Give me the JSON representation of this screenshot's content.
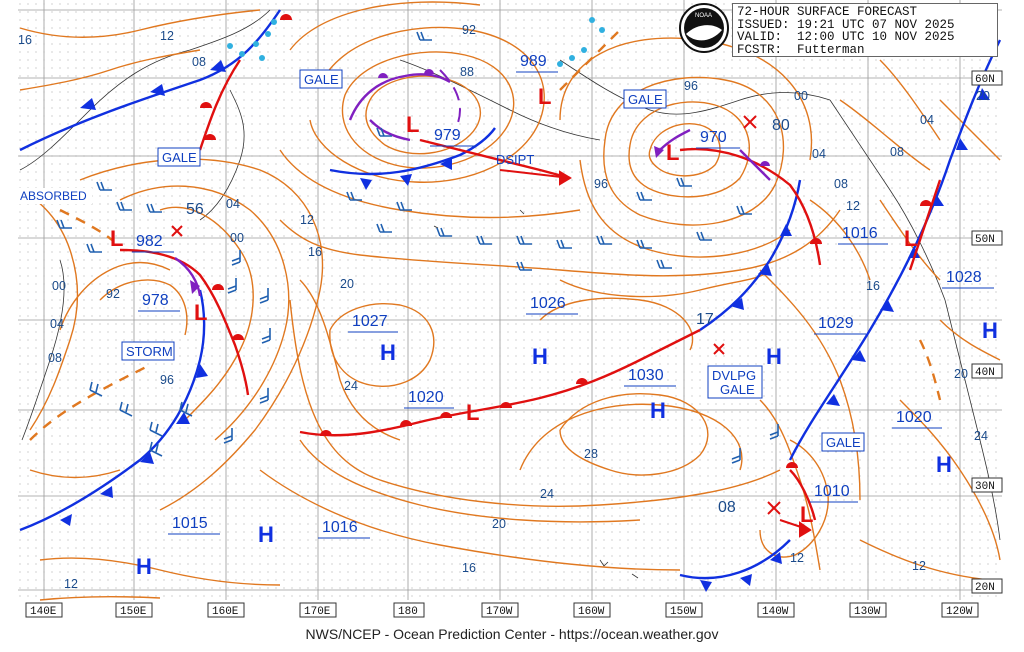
{
  "header": {
    "line1": "72-HOUR SURFACE FORECAST",
    "line2": "ISSUED: 19:21 UTC 07 NOV 2025",
    "line3": "VALID:  12:00 UTC 10 NOV 2025",
    "line4": "FCSTR:  Futterman"
  },
  "footer": "NWS/NCEP - Ocean Prediction Center - https://ocean.weather.gov",
  "logo_text": "NOAA",
  "colors": {
    "isobar": "#e07820",
    "cold_front": "#1030e0",
    "warm_front": "#e01010",
    "occluded": "#8020c0",
    "wind_barb": "#2060b0",
    "label_blue": "#1040c0",
    "graticule": "#909090"
  },
  "longitude_labels": [
    "140E",
    "150E",
    "160E",
    "170E",
    "180",
    "170W",
    "160W",
    "150W",
    "140W",
    "130W",
    "120W"
  ],
  "latitude_labels": [
    "60N",
    "50N",
    "40N",
    "30N",
    "20N"
  ],
  "pressure_centers": [
    {
      "type": "L",
      "value": "979"
    },
    {
      "type": "L",
      "value": "970"
    },
    {
      "type": "L",
      "value": "982"
    },
    {
      "type": "L",
      "value": "978"
    },
    {
      "type": "L",
      "value": "989"
    },
    {
      "type": "L",
      "value": "1020"
    },
    {
      "type": "L",
      "value": "1010"
    },
    {
      "type": "L",
      "value": "1016"
    },
    {
      "type": "H",
      "value": "1027"
    },
    {
      "type": "H",
      "value": "1026"
    },
    {
      "type": "H",
      "value": "1030"
    },
    {
      "type": "H",
      "value": "1029"
    },
    {
      "type": "H",
      "value": "1028"
    },
    {
      "type": "H",
      "value": "1020"
    },
    {
      "type": "H",
      "value": "1015"
    },
    {
      "type": "H",
      "value": "1016"
    }
  ],
  "boxed_labels": [
    "GALE",
    "GALE",
    "GALE",
    "GALE",
    "STORM",
    "DVLPG\nGALE",
    "ABSORBED"
  ],
  "isobar_labels": [
    "16",
    "12",
    "08",
    "04",
    "00",
    "96",
    "92",
    "88",
    "92",
    "96",
    "00",
    "04",
    "08",
    "12",
    "16",
    "20",
    "24",
    "28",
    "24",
    "20",
    "16",
    "12",
    "56",
    "80",
    "17",
    "08",
    "12",
    "96",
    "00",
    "04",
    "08",
    "12",
    "16",
    "20",
    "24",
    "20",
    "04",
    "08",
    "12"
  ],
  "other_labels": [
    "DSIPT",
    "ABSORBED"
  ]
}
